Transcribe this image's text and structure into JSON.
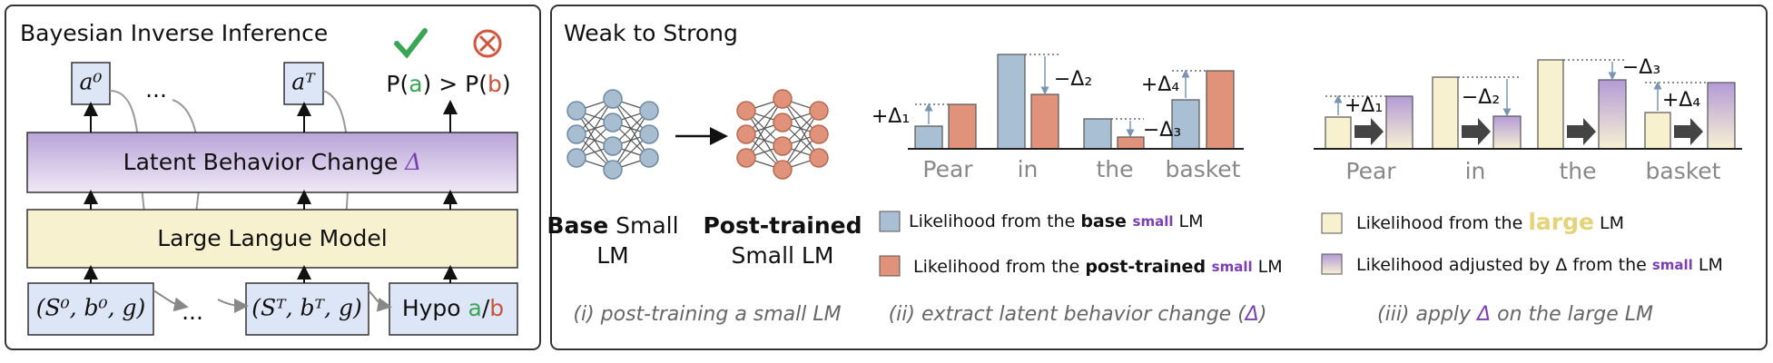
{
  "left_panel": {
    "title": "Bayesian Inverse Inference",
    "outputs": [
      "a⁰",
      "aᵀ"
    ],
    "ellipsis": "...",
    "comparison": [
      "P(",
      "a",
      ") > P(",
      "b",
      ")"
    ],
    "latent": [
      "Latent Behavior Change ",
      "Δ"
    ],
    "model": "Large Langue Model",
    "inputs": [
      "(S⁰, b⁰, g)",
      "(Sᵀ, bᵀ, g)"
    ],
    "hypo": [
      "Hypo ",
      "a",
      "/",
      "b"
    ]
  },
  "right_panel": {
    "title": "Weak to Strong",
    "step1": {
      "base_label": [
        "Base",
        " Small",
        "LM"
      ],
      "post_label": [
        "Post-trained",
        "Small LM"
      ],
      "caption": "(i) post-training a small LM"
    },
    "step2": {
      "words": [
        "Pear",
        "in",
        "the",
        "basket"
      ],
      "deltas": [
        "+Δ₁",
        "−Δ₂",
        "−Δ₃",
        "+Δ₄"
      ],
      "legend": [
        [
          "Likelihood from the ",
          "base ",
          "small",
          " LM"
        ],
        [
          "Likelihood from the ",
          "post-trained ",
          "small",
          " LM"
        ]
      ],
      "caption": [
        "(ii) extract latent behavior change (",
        "Δ",
        ")"
      ]
    },
    "step3": {
      "words": [
        "Pear",
        "in",
        "the",
        "basket"
      ],
      "deltas": [
        "+Δ₁",
        "−Δ₂",
        "−Δ₃",
        "+Δ₄"
      ],
      "legend": [
        [
          "Likelihood from the ",
          "large",
          " LM"
        ],
        [
          "Likelihood adjusted by Δ from the ",
          "small",
          " LM"
        ]
      ],
      "caption": [
        "(iii) apply ",
        "Δ",
        " on the large LM"
      ]
    }
  }
}
